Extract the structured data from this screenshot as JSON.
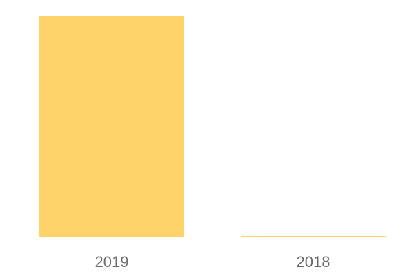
{
  "chart_data": {
    "type": "bar",
    "categories": [
      "2019",
      "2018"
    ],
    "values": [
      100,
      0.3
    ],
    "ylim": [
      0,
      100
    ],
    "title": "",
    "xlabel": "",
    "ylabel": "",
    "grid": false,
    "colors": {
      "bar": "#fed46a",
      "tick_label": "#6b6b6b",
      "background": "#ffffff"
    }
  }
}
